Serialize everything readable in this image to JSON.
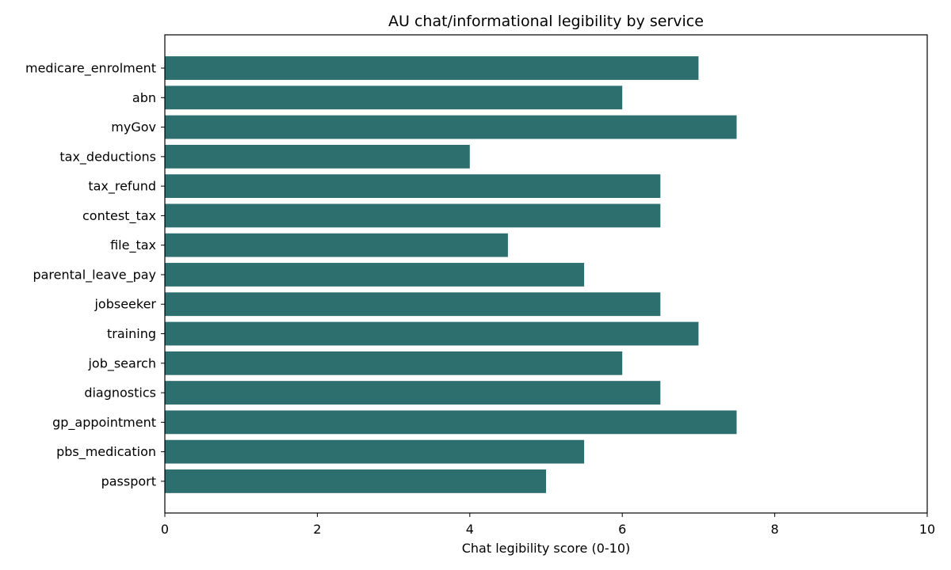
{
  "chart_data": {
    "type": "bar",
    "orientation": "horizontal",
    "title": "AU chat/informational legibility by service",
    "xlabel": "Chat legibility score (0-10)",
    "ylabel": "",
    "xlim": [
      0,
      10
    ],
    "x_ticks": [
      0,
      2,
      4,
      6,
      8,
      10
    ],
    "grid": false,
    "bar_color": "#2d6e6e",
    "categories": [
      "medicare_enrolment",
      "abn",
      "myGov",
      "tax_deductions",
      "tax_refund",
      "contest_tax",
      "file_tax",
      "parental_leave_pay",
      "jobseeker",
      "training",
      "job_search",
      "diagnostics",
      "gp_appointment",
      "pbs_medication",
      "passport"
    ],
    "values": [
      7,
      6,
      7.5,
      4,
      6.5,
      6.5,
      4.5,
      5.5,
      6.5,
      7,
      6,
      6.5,
      7.5,
      5.5,
      5
    ]
  }
}
